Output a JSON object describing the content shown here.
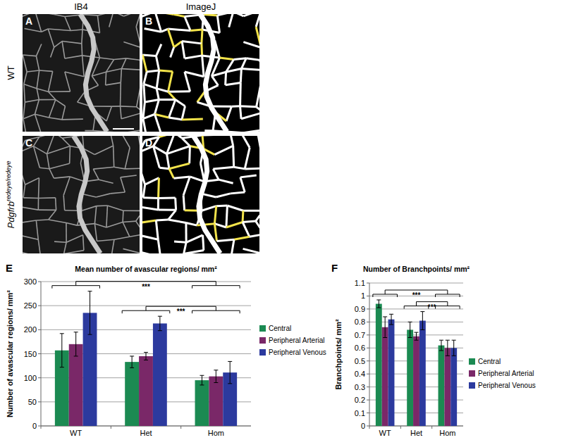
{
  "figure": {
    "column_labels": [
      "IB4",
      "ImageJ"
    ],
    "row_labels": [
      {
        "text": "WT"
      },
      {
        "text": "Pdgfrb",
        "superscript": "redeye/redeye"
      }
    ],
    "panel_letters": [
      "A",
      "B",
      "C",
      "D"
    ]
  },
  "chart_data": [
    {
      "type": "bar",
      "panel_label": "E",
      "title": "Mean number of avascular regions/ mm²",
      "y_label": "Number of avascular regions/ mm²",
      "categories": [
        "WT",
        "Het",
        "Hom"
      ],
      "series": [
        {
          "name": "Central",
          "color": "#1b8a52",
          "values": [
            157,
            133,
            95
          ],
          "errors": [
            35,
            12,
            10
          ]
        },
        {
          "name": "Peripheral Arterial",
          "color": "#7a2868",
          "values": [
            170,
            145,
            103
          ],
          "errors": [
            25,
            8,
            13
          ]
        },
        {
          "name": "Peripheral Venous",
          "color": "#2c3a9e",
          "values": [
            235,
            213,
            111
          ],
          "errors": [
            45,
            15,
            23
          ]
        }
      ],
      "ylim": [
        0,
        300
      ],
      "yticks": [
        0,
        50,
        100,
        150,
        200,
        250,
        300
      ],
      "grid": true,
      "legend": "right",
      "comparisons": [
        {
          "groups": [
            "WT",
            "Hom"
          ],
          "label": "***"
        },
        {
          "groups": [
            "Het",
            "Hom"
          ],
          "label": "***"
        }
      ]
    },
    {
      "type": "bar",
      "panel_label": "F",
      "title": "Number of Branchpoints/ mm²",
      "y_label": "Branchpoints/ mm²",
      "categories": [
        "WT",
        "Het",
        "Hom"
      ],
      "series": [
        {
          "name": "Central",
          "color": "#1b8a52",
          "values": [
            0.94,
            0.74,
            0.62
          ],
          "errors": [
            0.03,
            0.06,
            0.04
          ]
        },
        {
          "name": "Peripheral Arterial",
          "color": "#7a2868",
          "values": [
            0.76,
            0.69,
            0.6
          ],
          "errors": [
            0.08,
            0.03,
            0.06
          ]
        },
        {
          "name": "Peripheral Venous",
          "color": "#2c3a9e",
          "values": [
            0.82,
            0.81,
            0.6
          ],
          "errors": [
            0.04,
            0.07,
            0.06
          ]
        }
      ],
      "ylim": [
        0,
        1.1
      ],
      "yticks": [
        0,
        0.1,
        0.2,
        0.3,
        0.4,
        0.5,
        0.6,
        0.7,
        0.8,
        0.9,
        1,
        1.1
      ],
      "grid": true,
      "legend": "right",
      "comparisons": [
        {
          "groups": [
            "WT",
            "Hom"
          ],
          "label": "***"
        },
        {
          "groups": [
            "Het",
            "Hom"
          ],
          "label": "***"
        }
      ]
    }
  ]
}
